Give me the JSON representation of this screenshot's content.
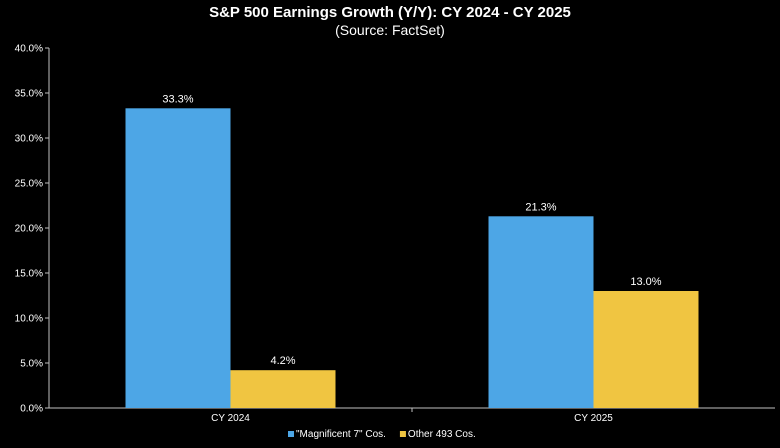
{
  "chart_data": {
    "type": "bar",
    "title": "S&P 500 Earnings Growth (Y/Y): CY 2024 - CY 2025",
    "subtitle": "(Source: FactSet)",
    "categories": [
      "CY 2024",
      "CY 2025"
    ],
    "series": [
      {
        "name": "\"Magnificent 7\" Cos.",
        "values": [
          33.3,
          21.3
        ],
        "labels": [
          "33.3%",
          "21.3%"
        ],
        "color": "#4da6e6"
      },
      {
        "name": "Other 493 Cos.",
        "values": [
          4.2,
          13.0
        ],
        "labels": [
          "4.2%",
          "13.0%"
        ],
        "color": "#f0c541"
      }
    ],
    "ylim": [
      0,
      40
    ],
    "yticks": [
      "0.0%",
      "5.0%",
      "10.0%",
      "15.0%",
      "20.0%",
      "25.0%",
      "30.0%",
      "35.0%",
      "40.0%"
    ],
    "xlabel": "",
    "ylabel": "",
    "grid": false,
    "legend_position": "bottom",
    "colors": {
      "background": "#000000",
      "text": "#ffffff",
      "axis": "#bfbfbf"
    }
  }
}
